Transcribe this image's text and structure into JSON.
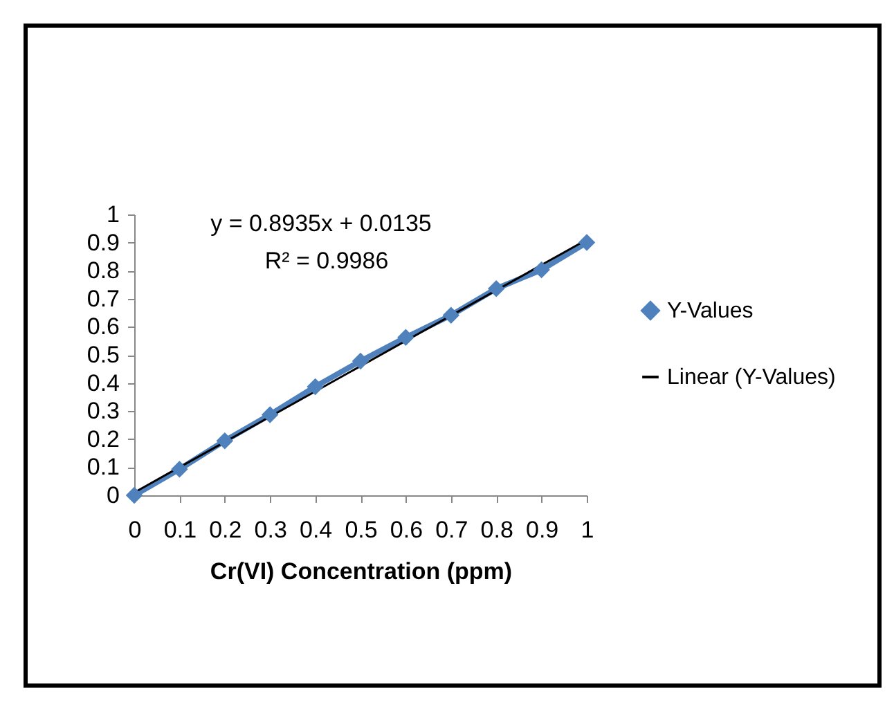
{
  "chart_data": {
    "type": "line",
    "xlabel": "Cr(VI) Concentration (ppm)",
    "x": [
      0,
      0.1,
      0.2,
      0.3,
      0.4,
      0.5,
      0.6,
      0.7,
      0.8,
      0.9,
      1
    ],
    "series": [
      {
        "name": "Y-Values",
        "color": "#4f81bd",
        "marker": "diamond",
        "values": [
          0,
          0.093,
          0.194,
          0.287,
          0.387,
          0.478,
          0.562,
          0.641,
          0.736,
          0.803,
          0.9
        ]
      },
      {
        "name": "Linear (Y-Values)",
        "color": "#000000",
        "marker": "none",
        "x": [
          0,
          1
        ],
        "values": [
          0.01,
          0.91
        ]
      }
    ],
    "xlim": [
      0,
      1
    ],
    "xticks": [
      0,
      0.1,
      0.2,
      0.3,
      0.4,
      0.5,
      0.6,
      0.7,
      0.8,
      0.9,
      1
    ],
    "ylim": [
      0,
      1
    ],
    "yticks": [
      0,
      0.1,
      0.2,
      0.3,
      0.4,
      0.5,
      0.6,
      0.7,
      0.8,
      0.9,
      1
    ],
    "annotations": [
      "y = 0.8935x + 0.0135",
      "R² = 0.9986"
    ],
    "grid": false,
    "legend": "right",
    "line_style": "solid"
  }
}
